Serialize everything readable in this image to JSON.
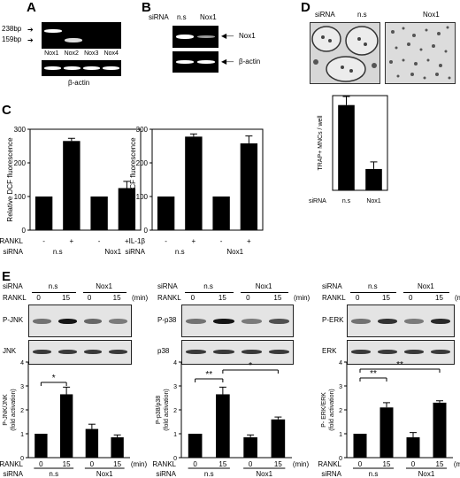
{
  "panels": {
    "A": {
      "label": "A",
      "markers": [
        "238bp",
        "159bp"
      ],
      "lanes": [
        "Nox1",
        "Nox2",
        "Nox3",
        "Nox4"
      ],
      "loading": "β-actin"
    },
    "B": {
      "label": "B",
      "sirna_label": "siRNA",
      "cols": [
        "n.s",
        "Nox1"
      ],
      "rows": [
        "Nox1",
        "β-actin"
      ]
    },
    "C": {
      "label": "C"
    },
    "D": {
      "label": "D",
      "sirna_label": "siRNA",
      "cols": [
        "n.s",
        "Nox1"
      ]
    },
    "E": {
      "label": "E",
      "blots": [
        {
          "row1": "P-JNK",
          "row2": "JNK"
        },
        {
          "row1": "P-p38",
          "row2": "p38"
        },
        {
          "row1": "P-ERK",
          "row2": "ERK"
        }
      ],
      "rankl_label": "RANKL",
      "sirna_label": "siRNA",
      "ns": "n.s",
      "nox1": "Nox1",
      "times": [
        "0",
        "15",
        "0",
        "15"
      ],
      "min": "(min)"
    }
  },
  "chart_data": [
    {
      "id": "C1",
      "type": "bar",
      "ylabel": "Relative DCF fluorescence",
      "ylim": [
        0,
        300
      ],
      "yticks": [
        0,
        100,
        200,
        300
      ],
      "treatment": "RANKL",
      "signs": [
        "-",
        "+",
        "-",
        "+"
      ],
      "groups": [
        "n.s",
        "Nox1"
      ],
      "sirna_label": "siRNA",
      "values": [
        100,
        265,
        100,
        125
      ],
      "errors": [
        0,
        8,
        0,
        20
      ]
    },
    {
      "id": "C2",
      "type": "bar",
      "ylabel": "Relative DCF fluorescence",
      "ylim": [
        0,
        300
      ],
      "yticks": [
        0,
        100,
        200,
        300
      ],
      "treatment": "IL-1β",
      "signs": [
        "-",
        "+",
        "-",
        "+"
      ],
      "groups": [
        "n.s",
        "Nox1"
      ],
      "sirna_label": "siRNA",
      "values": [
        100,
        278,
        100,
        258
      ],
      "errors": [
        0,
        8,
        0,
        22
      ]
    },
    {
      "id": "D",
      "type": "bar",
      "ylabel": "TRAP+ MNCs / well",
      "ylim": [
        0,
        200
      ],
      "yticks": [],
      "sirna_label": "siRNA",
      "categories": [
        "n.s",
        "Nox1"
      ],
      "values": [
        180,
        45
      ],
      "errors": [
        18,
        15
      ]
    },
    {
      "id": "E1",
      "type": "bar",
      "ylabel": "P-JNK/JNK",
      "ylabel2": "(fold activation)",
      "ylim": [
        0,
        4
      ],
      "yticks": [
        0,
        1,
        2,
        3,
        4
      ],
      "xvals": [
        "0",
        "15",
        "0",
        "15"
      ],
      "groups": [
        "n.s",
        "Nox1"
      ],
      "treatment": "RANKL",
      "sirna_label": "siRNA",
      "min": "(min)",
      "values": [
        1.0,
        2.65,
        1.2,
        0.85
      ],
      "errors": [
        0,
        0.3,
        0.2,
        0.1
      ],
      "sig": [
        {
          "from": 0,
          "to": 1,
          "label": "*"
        }
      ]
    },
    {
      "id": "E2",
      "type": "bar",
      "ylabel": "P-p38/p38",
      "ylabel2": "(fold activation)",
      "ylim": [
        0,
        4
      ],
      "yticks": [
        0,
        1,
        2,
        3,
        4
      ],
      "xvals": [
        "0",
        "15",
        "0",
        "15"
      ],
      "groups": [
        "n.s",
        "Nox1"
      ],
      "treatment": "RANKL",
      "sirna_label": "siRNA",
      "min": "(min)",
      "values": [
        1.0,
        2.65,
        0.85,
        1.6
      ],
      "errors": [
        0,
        0.3,
        0.1,
        0.1
      ],
      "sig": [
        {
          "from": 0,
          "to": 1,
          "label": "**"
        },
        {
          "from": 1,
          "to": 3,
          "label": "*"
        }
      ]
    },
    {
      "id": "E3",
      "type": "bar",
      "ylabel": "P- ERK/ERK",
      "ylabel2": "(fold activation)",
      "ylim": [
        0,
        4
      ],
      "yticks": [
        0,
        1,
        2,
        3,
        4
      ],
      "xvals": [
        "0",
        "15",
        "0",
        "15"
      ],
      "groups": [
        "n.s",
        "Nox1"
      ],
      "treatment": "RANKL",
      "sirna_label": "siRNA",
      "min": "(min)",
      "values": [
        1.0,
        2.1,
        0.85,
        2.3
      ],
      "errors": [
        0,
        0.2,
        0.2,
        0.08
      ],
      "sig": [
        {
          "from": 0,
          "to": 1,
          "label": "**"
        },
        {
          "from": 0,
          "to": 3,
          "label": "**"
        }
      ]
    }
  ]
}
